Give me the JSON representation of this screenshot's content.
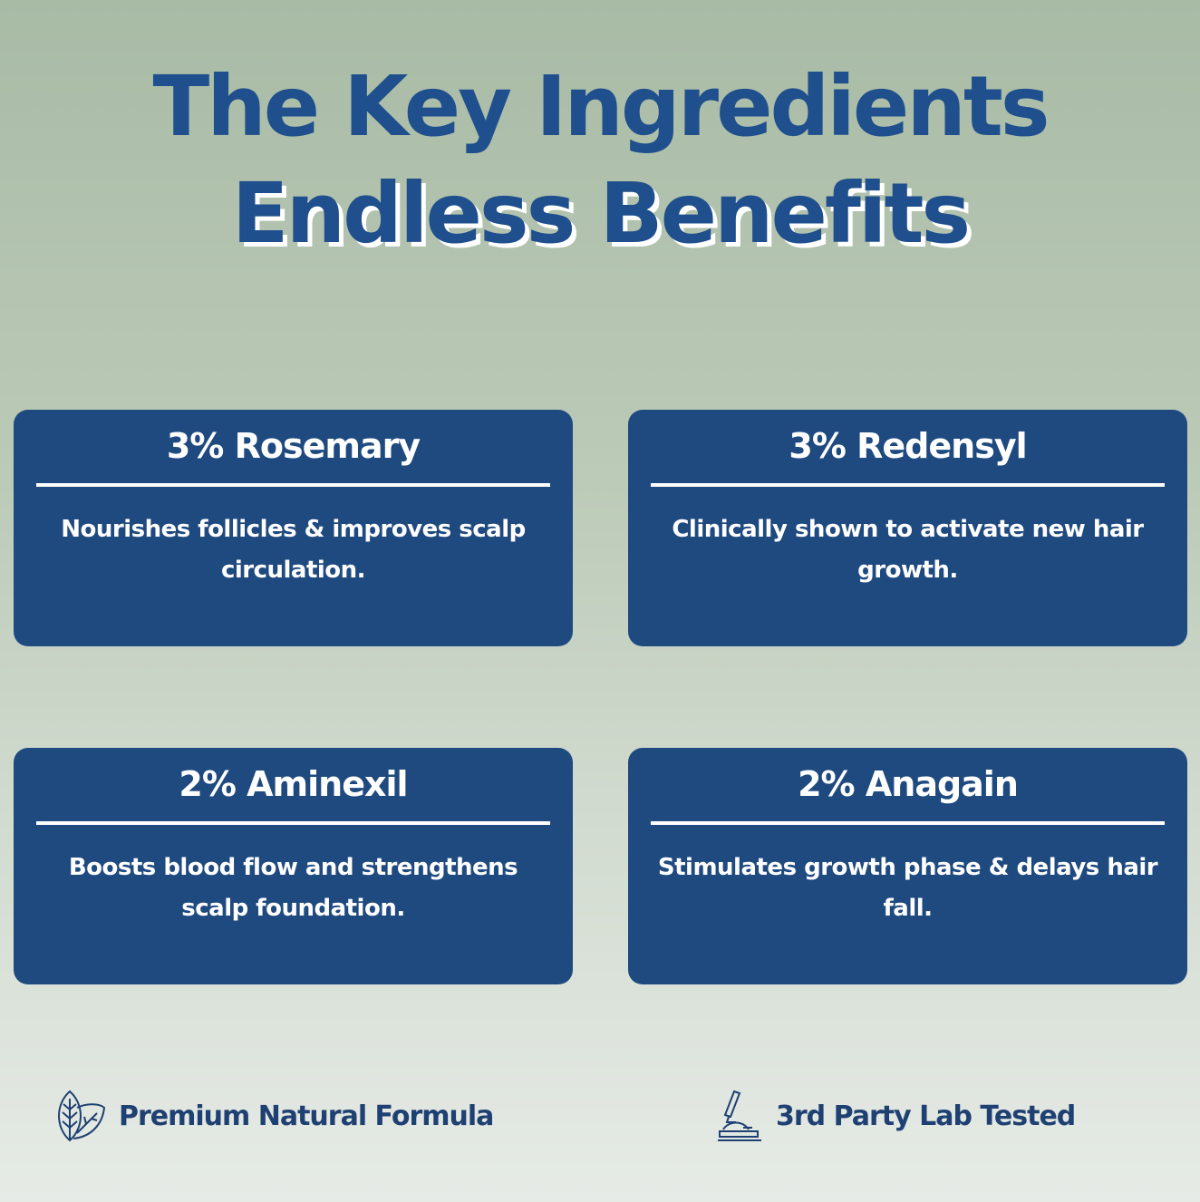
{
  "headline": {
    "line1": "The Key Ingredients",
    "line2": "Endless Benefits"
  },
  "colors": {
    "title": "#1f4f8c",
    "card": "#1f4a80",
    "footer_text": "#1f4072"
  },
  "cards": [
    {
      "title": "3% Rosemary",
      "description": "Nourishes follicles & improves scalp circulation."
    },
    {
      "title": "3% Redensyl",
      "description": "Clinically shown to activate new hair growth."
    },
    {
      "title": "2% Aminexil",
      "description": "Boosts blood flow and strengthens scalp foundation."
    },
    {
      "title": "2% Anagain",
      "description": "Stimulates growth phase & delays hair fall."
    }
  ],
  "features": [
    {
      "icon": "leaf-icon",
      "label": "Premium Natural Formula"
    },
    {
      "icon": "microscope-icon",
      "label": "3rd Party Lab Tested"
    }
  ]
}
